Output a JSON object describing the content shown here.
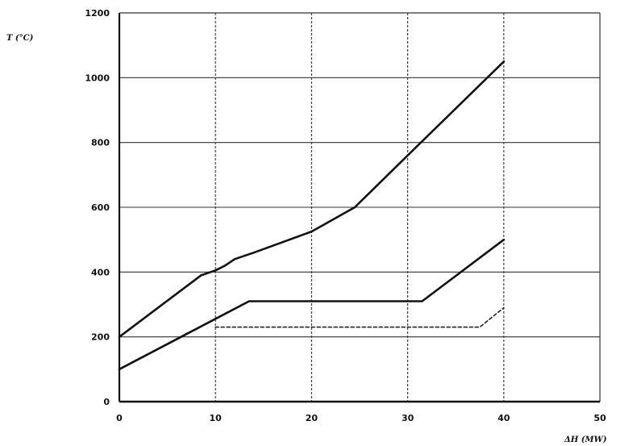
{
  "chart_data": {
    "type": "line",
    "title": "",
    "xlabel": "ΔH (MW)",
    "ylabel": "T (°C)",
    "xlim": [
      0,
      50
    ],
    "ylim": [
      0,
      1200
    ],
    "xticks": [
      "0",
      "10",
      "20",
      "30",
      "40",
      "50"
    ],
    "yticks": [
      "0",
      "200",
      "400",
      "600",
      "800",
      "1000",
      "1200"
    ],
    "grid": true,
    "legend": "none",
    "series": [
      {
        "style": "solid-thick",
        "color": "#111111",
        "points": [
          [
            0,
            200
          ],
          [
            8.5,
            390
          ],
          [
            10,
            405
          ],
          [
            11,
            420
          ],
          [
            12,
            440
          ],
          [
            14,
            460
          ],
          [
            20,
            525
          ],
          [
            24.5,
            600
          ],
          [
            30,
            760
          ],
          [
            40,
            1050
          ]
        ]
      },
      {
        "style": "solid-thick",
        "color": "#111111",
        "points": [
          [
            0,
            100
          ],
          [
            13.5,
            310
          ],
          [
            31.5,
            310
          ],
          [
            40,
            500
          ]
        ]
      },
      {
        "style": "dashed",
        "color": "#222222",
        "points": [
          [
            10,
            230
          ],
          [
            37.5,
            230
          ],
          [
            40,
            290
          ]
        ]
      }
    ]
  }
}
